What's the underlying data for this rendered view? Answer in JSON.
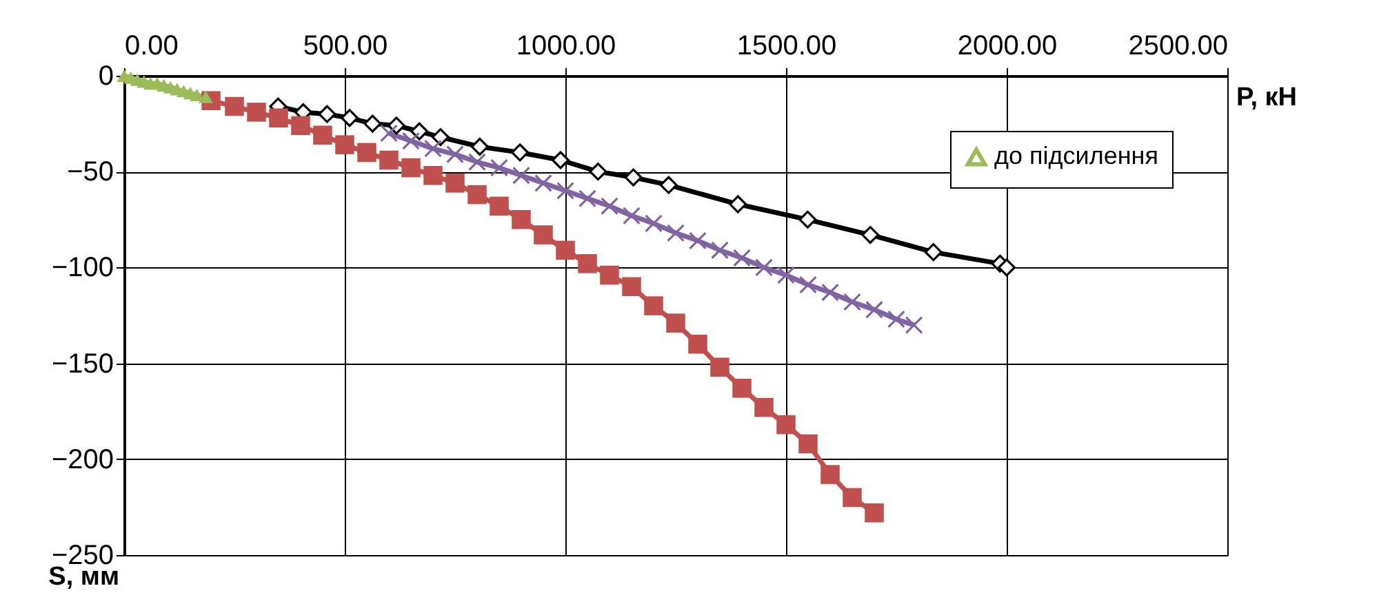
{
  "chart_data": {
    "type": "line",
    "xlabel": "P, кН",
    "ylabel": "S, мм",
    "xlim": [
      0,
      2500
    ],
    "xticks": [
      {
        "value": 0,
        "label": "0.00"
      },
      {
        "value": 500,
        "label": "500.00"
      },
      {
        "value": 1000,
        "label": "1000.00"
      },
      {
        "value": 1500,
        "label": "1500.00"
      },
      {
        "value": 2000,
        "label": "2000.00"
      },
      {
        "value": 2500,
        "label": "2500.00"
      }
    ],
    "ylim": [
      -250,
      0
    ],
    "yticks": [
      -250,
      -200,
      -150,
      -100,
      -50,
      0
    ],
    "grid": true,
    "legend": "top right",
    "line_style": "solid",
    "series": [
      {
        "color": "#000000",
        "marker": "diamond",
        "x": [
          349,
          406,
          460,
          511,
          563,
          617,
          669,
          717,
          806,
          897,
          989,
          1074,
          1154,
          1234,
          1391,
          1549,
          1691,
          1834,
          1985,
          2000
        ],
        "values": [
          -16,
          -19,
          -20,
          -22,
          -25,
          -26,
          -29,
          -32,
          -37,
          -40,
          -44,
          -50,
          -53,
          -57,
          -67,
          -75,
          -83,
          -92,
          -98,
          -100
        ]
      },
      {
        "color": "#8064a2",
        "marker": "cross",
        "x": [
          600,
          650,
          700,
          750,
          800,
          850,
          900,
          950,
          1000,
          1050,
          1100,
          1150,
          1200,
          1250,
          1300,
          1350,
          1400,
          1450,
          1500,
          1550,
          1600,
          1650,
          1700,
          1750,
          1790
        ],
        "values": [
          -30,
          -34,
          -38,
          -41,
          -45,
          -48,
          -52,
          -56,
          -60,
          -64,
          -68,
          -73,
          -77,
          -82,
          -86,
          -91,
          -95,
          -100,
          -104,
          -109,
          -113,
          -118,
          -122,
          -127,
          -130
        ]
      },
      {
        "color": "#c0504d",
        "marker": "square",
        "x": [
          197,
          250,
          300,
          350,
          400,
          450,
          500,
          550,
          600,
          650,
          700,
          750,
          800,
          850,
          900,
          950,
          1000,
          1050,
          1100,
          1150,
          1200,
          1250,
          1300,
          1350,
          1400,
          1450,
          1500,
          1550,
          1600,
          1650,
          1700
        ],
        "values": [
          -13,
          -16,
          -19,
          -22,
          -26,
          -31,
          -36,
          -40,
          -44,
          -48,
          -52,
          -56,
          -62,
          -68,
          -75,
          -83,
          -91,
          -98,
          -104,
          -110,
          -120,
          -129,
          -140,
          -152,
          -163,
          -173,
          -182,
          -192,
          -208,
          -220,
          -228
        ]
      },
      {
        "name": "до підсилення",
        "color": "#9bbb59",
        "marker": "triangle",
        "x": [
          0,
          15,
          30,
          45,
          60,
          75,
          90,
          105,
          120,
          135,
          150,
          165,
          185
        ],
        "values": [
          0,
          -1,
          -2,
          -3,
          -4,
          -4,
          -5,
          -6,
          -7,
          -8,
          -9,
          -10,
          -11
        ]
      }
    ]
  }
}
